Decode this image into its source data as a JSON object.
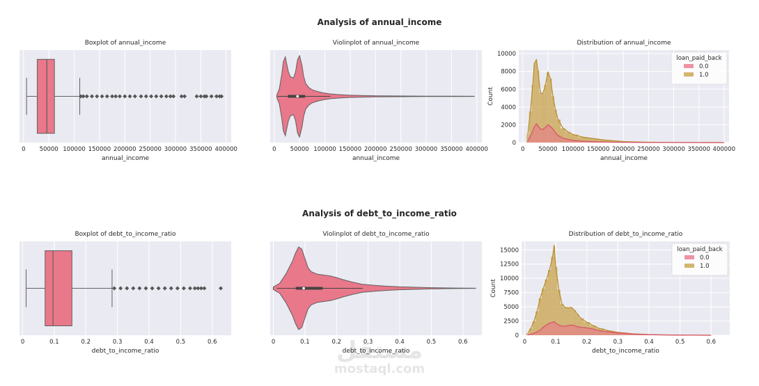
{
  "sections": [
    {
      "title": "Analysis of annual_income"
    },
    {
      "title": "Analysis of debt_to_income_ratio"
    }
  ],
  "watermark": {
    "logo": "مستقل",
    "text": "mostaql.com"
  },
  "colors": {
    "pink": "#e8788a",
    "pinkDark": "#d9556b",
    "gold": "#c8a24a",
    "panel_bg": "#eaeaf2",
    "grid": "#ffffff",
    "outline": "#606060"
  },
  "chart_data": [
    {
      "id": "box_income",
      "type": "boxplot",
      "title": "Boxplot of annual_income",
      "xlabel": "annual_income",
      "xlim": [
        -8000,
        410000
      ],
      "xticks": [
        0,
        50000,
        100000,
        150000,
        200000,
        250000,
        300000,
        350000,
        400000
      ],
      "min": 6000,
      "q1": 27000,
      "median": 46000,
      "q3": 61000,
      "whisker_high": 111000,
      "outliers": [
        113000,
        118000,
        125000,
        135000,
        145000,
        155000,
        165000,
        175000,
        182000,
        190000,
        200000,
        210000,
        220000,
        232000,
        242000,
        252000,
        262000,
        272000,
        282000,
        290000,
        296000,
        312000,
        318000,
        342000,
        350000,
        357000,
        361000,
        371000,
        381000,
        387000,
        391000
      ]
    },
    {
      "id": "violin_income",
      "type": "violin",
      "title": "Violinplot of annual_income",
      "xlabel": "annual_income",
      "xlim": [
        -8000,
        410000
      ],
      "xticks": [
        0,
        50000,
        100000,
        150000,
        200000,
        250000,
        300000,
        350000,
        400000
      ],
      "density_x": [
        5000,
        10000,
        15000,
        18000,
        22000,
        25000,
        28000,
        32000,
        38000,
        42000,
        46000,
        50000,
        55000,
        58000,
        62000,
        68000,
        75000,
        85000,
        95000,
        110000,
        125000,
        145000,
        170000,
        200000,
        250000,
        300000,
        350000,
        395000
      ],
      "density_w": [
        0.03,
        0.18,
        0.55,
        0.85,
        0.97,
        0.78,
        0.6,
        0.48,
        0.45,
        0.6,
        0.9,
        1.0,
        0.75,
        0.5,
        0.32,
        0.22,
        0.16,
        0.12,
        0.09,
        0.06,
        0.045,
        0.03,
        0.02,
        0.013,
        0.008,
        0.005,
        0.003,
        0.002
      ],
      "q1": 27000,
      "median": 46000,
      "q3": 61000,
      "whisker_low": 6000,
      "whisker_high": 111000
    },
    {
      "id": "hist_income",
      "type": "histogram",
      "title": "Distribution of annual_income",
      "xlabel": "annual_income",
      "ylabel": "Count",
      "xlim": [
        -8000,
        410000
      ],
      "xticks": [
        0,
        50000,
        100000,
        150000,
        200000,
        250000,
        300000,
        350000,
        400000
      ],
      "ylim": [
        0,
        10400
      ],
      "yticks": [
        0,
        2000,
        4000,
        6000,
        8000,
        10000
      ],
      "legend": {
        "title": "loan_paid_back",
        "labels": [
          "0.0",
          "1.0"
        ],
        "position": "upper right"
      },
      "bins_x": [
        10000,
        15000,
        20000,
        23000,
        27000,
        30000,
        35000,
        40000,
        45000,
        50000,
        55000,
        60000,
        65000,
        70000,
        80000,
        90000,
        100000,
        120000,
        140000,
        160000,
        180000,
        200000,
        220000,
        250000,
        300000,
        350000,
        400000
      ],
      "series": [
        {
          "name": "0.0",
          "values": [
            150,
            700,
            1300,
            1800,
            2100,
            1900,
            1500,
            1500,
            1700,
            2000,
            1800,
            1500,
            1100,
            800,
            500,
            350,
            250,
            150,
            100,
            60,
            40,
            30,
            20,
            10,
            5,
            0,
            0
          ]
        },
        {
          "name": "1.0",
          "values": [
            900,
            3500,
            6500,
            8900,
            9300,
            8100,
            5600,
            5500,
            6500,
            7900,
            7200,
            5200,
            3700,
            2600,
            1600,
            1200,
            900,
            600,
            450,
            300,
            200,
            120,
            80,
            40,
            15,
            5,
            0
          ]
        }
      ]
    },
    {
      "id": "box_dti",
      "type": "boxplot",
      "title": "Boxplot of debt_to_income_ratio",
      "xlabel": "debt_to_income_ratio",
      "xlim": [
        -0.01,
        0.66
      ],
      "xticks": [
        0.0,
        0.1,
        0.2,
        0.3,
        0.4,
        0.5,
        0.6
      ],
      "min": 0.011,
      "q1": 0.071,
      "median": 0.096,
      "q3": 0.156,
      "whisker_high": 0.283,
      "outliers": [
        0.29,
        0.31,
        0.33,
        0.35,
        0.37,
        0.39,
        0.41,
        0.43,
        0.45,
        0.47,
        0.49,
        0.51,
        0.53,
        0.545,
        0.555,
        0.565,
        0.575,
        0.627
      ]
    },
    {
      "id": "violin_dti",
      "type": "violin",
      "title": "Violinplot of debt_to_income_ratio",
      "xlabel": "debt_to_income_ratio",
      "xlim": [
        -0.01,
        0.66
      ],
      "xticks": [
        0.0,
        0.1,
        0.2,
        0.3,
        0.4,
        0.5,
        0.6
      ],
      "density_x": [
        0.0,
        0.02,
        0.04,
        0.06,
        0.07,
        0.08,
        0.09,
        0.1,
        0.11,
        0.12,
        0.14,
        0.16,
        0.18,
        0.2,
        0.22,
        0.25,
        0.28,
        0.32,
        0.36,
        0.4,
        0.45,
        0.5,
        0.55,
        0.6,
        0.64
      ],
      "density_w": [
        0.03,
        0.12,
        0.35,
        0.65,
        0.85,
        1.0,
        0.95,
        0.72,
        0.5,
        0.4,
        0.34,
        0.32,
        0.3,
        0.26,
        0.21,
        0.15,
        0.1,
        0.07,
        0.05,
        0.035,
        0.025,
        0.015,
        0.008,
        0.004,
        0.002
      ],
      "q1": 0.071,
      "median": 0.096,
      "q3": 0.156,
      "whisker_low": 0.011,
      "whisker_high": 0.283
    },
    {
      "id": "hist_dti",
      "type": "histogram",
      "title": "Distribution of debt_to_income_ratio",
      "xlabel": "debt_to_income_ratio",
      "ylabel": "Count",
      "xlim": [
        -0.01,
        0.66
      ],
      "xticks": [
        0.0,
        0.1,
        0.2,
        0.3,
        0.4,
        0.5,
        0.6
      ],
      "ylim": [
        0,
        16500
      ],
      "yticks": [
        0,
        2500,
        5000,
        7500,
        10000,
        12500,
        15000
      ],
      "legend": {
        "title": "loan_paid_back",
        "labels": [
          "0.0",
          "1.0"
        ],
        "position": "upper right"
      },
      "bins_x": [
        0.01,
        0.02,
        0.03,
        0.04,
        0.05,
        0.06,
        0.07,
        0.08,
        0.09,
        0.095,
        0.1,
        0.11,
        0.12,
        0.13,
        0.14,
        0.15,
        0.16,
        0.17,
        0.18,
        0.2,
        0.22,
        0.24,
        0.27,
        0.3,
        0.35,
        0.4,
        0.45,
        0.5,
        0.55,
        0.6
      ],
      "series": [
        {
          "name": "0.0",
          "values": [
            50,
            200,
            350,
            600,
            900,
            1400,
            1800,
            2100,
            2300,
            2400,
            2100,
            1800,
            1600,
            1600,
            1700,
            1800,
            1700,
            1500,
            1400,
            1300,
            1100,
            800,
            600,
            400,
            200,
            100,
            50,
            20,
            10,
            0
          ]
        },
        {
          "name": "1.0",
          "values": [
            300,
            1200,
            2500,
            4200,
            6500,
            8200,
            9800,
            11500,
            13800,
            15800,
            12000,
            8000,
            5500,
            4900,
            4800,
            4900,
            4400,
            3700,
            3000,
            2300,
            1700,
            1200,
            800,
            500,
            250,
            120,
            60,
            30,
            15,
            5
          ]
        }
      ]
    }
  ]
}
